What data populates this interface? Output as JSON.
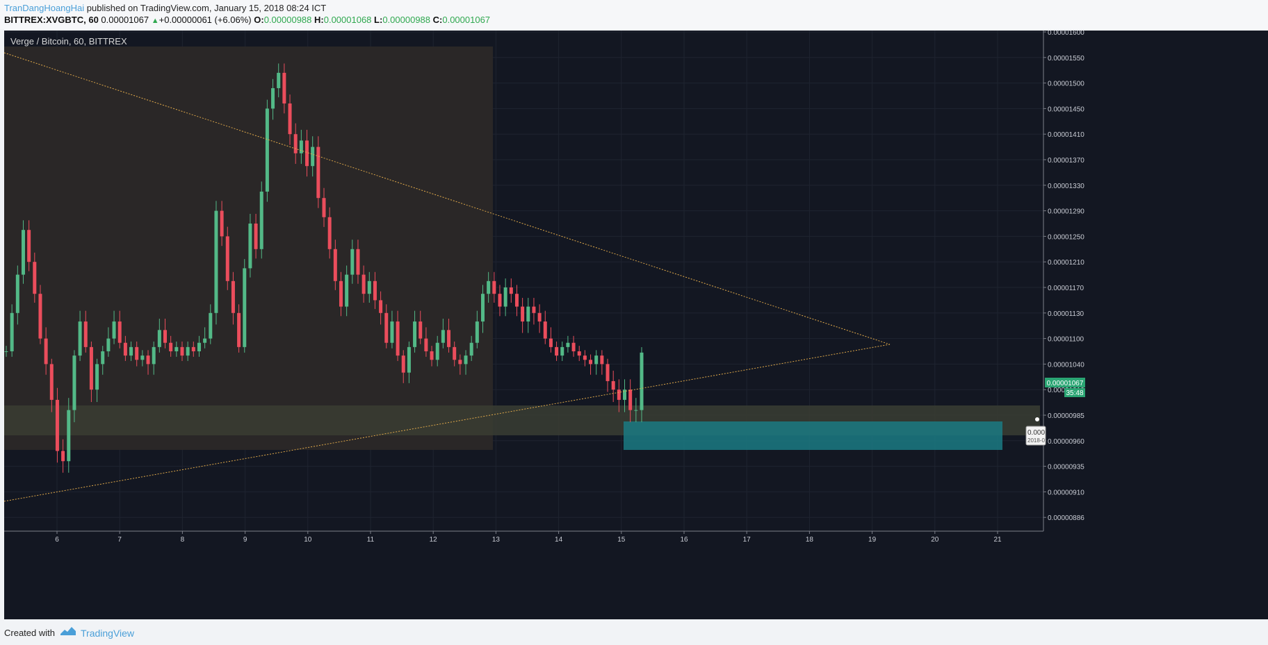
{
  "header": {
    "author": "TranDangHoangHai",
    "published_text": " published on TradingView.com, January 15, 2018 08:24 ICT",
    "symbol": "BITTREX:XVGBTC, 60",
    "last": "0.00001067",
    "change": "+0.00000061 (+6.06%)",
    "o_label": "O:",
    "o_value": "0.00000988",
    "h_label": "H:",
    "h_value": "0.00001068",
    "l_label": "L:",
    "l_value": "0.00000988",
    "c_label": "C:",
    "c_value": "0.00001067"
  },
  "chart": {
    "title": "Verge / Bitcoin, 60, BITTREX",
    "current_price": "0.00001067",
    "countdown": "35:48",
    "tooltip_value": "0.000",
    "tooltip_date": "2018-0",
    "colors": {
      "up": "#53b987",
      "down": "#eb4d5c",
      "background": "#131722",
      "trendline": "#e0a94a",
      "target_box": "#1b7a82",
      "current_tag": "#2aa573"
    }
  },
  "chart_data": {
    "type": "candlestick",
    "title": "Verge / Bitcoin, 60, BITTREX",
    "y_ticks": [
      "0.00001600",
      "0.00001550",
      "0.00001500",
      "0.00001450",
      "0.00001410",
      "0.00001370",
      "0.00001330",
      "0.00001290",
      "0.00001250",
      "0.00001210",
      "0.00001170",
      "0.00001130",
      "0.00001100",
      "0.00001040",
      "0.00001010",
      "0.00000985",
      "0.00000960",
      "0.00000935",
      "0.00000910",
      "0.00000886"
    ],
    "x_ticks": [
      "6",
      "7",
      "8",
      "9",
      "10",
      "11",
      "12",
      "13",
      "14",
      "15",
      "16",
      "17",
      "18",
      "19",
      "20",
      "21"
    ],
    "closes": [
      1.07e-05,
      1.13e-05,
      1.19e-05,
      1.26e-05,
      1.21e-05,
      1.16e-05,
      1.1e-05,
      1.04e-05,
      1e-05,
      9.5e-06,
      9.4e-06,
      9.9e-06,
      1.06e-05,
      1.12e-05,
      1.08e-05,
      1.01e-05,
      1.04e-05,
      1.07e-05,
      1.1e-05,
      1.12e-05,
      1.09e-05,
      1.06e-05,
      1.08e-05,
      1.05e-05,
      1.06e-05,
      1.04e-05,
      1.08e-05,
      1.11e-05,
      1.09e-05,
      1.07e-05,
      1.08e-05,
      1.06e-05,
      1.08e-05,
      1.07e-05,
      1.09e-05,
      1.1e-05,
      1.13e-05,
      1.29e-05,
      1.25e-05,
      1.18e-05,
      1.13e-05,
      1.08e-05,
      1.2e-05,
      1.27e-05,
      1.23e-05,
      1.32e-05,
      1.45e-05,
      1.49e-05,
      1.52e-05,
      1.46e-05,
      1.41e-05,
      1.38e-05,
      1.4e-05,
      1.36e-05,
      1.39e-05,
      1.31e-05,
      1.28e-05,
      1.23e-05,
      1.18e-05,
      1.14e-05,
      1.19e-05,
      1.23e-05,
      1.19e-05,
      1.16e-05,
      1.18e-05,
      1.15e-05,
      1.13e-05,
      1.09e-05,
      1.12e-05,
      1.06e-05,
      1.03e-05,
      1.08e-05,
      1.12e-05,
      1.1e-05,
      1.07e-05,
      1.05e-05,
      1.09e-05,
      1.11e-05,
      1.08e-05,
      1.05e-05,
      1.04e-05,
      1.06e-05,
      1.09e-05,
      1.12e-05,
      1.16e-05,
      1.18e-05,
      1.16e-05,
      1.14e-05,
      1.17e-05,
      1.16e-05,
      1.14e-05,
      1.12e-05,
      1.14e-05,
      1.13e-05,
      1.12e-05,
      1.1e-05,
      1.08e-05,
      1.06e-05,
      1.08e-05,
      1.09e-05,
      1.07e-05,
      1.06e-05,
      1.05e-05,
      1.04e-05,
      1.06e-05,
      1.04e-05,
      1.02e-05,
      1.01e-05,
      1e-05,
      1.01e-05,
      9.9e-06,
      9.9e-06,
      1.067e-05
    ],
    "annotations": [
      "descending trendline",
      "ascending trendline",
      "support zone 0.00000985-0.00001040",
      "target box 0.00000960-0.00001010"
    ]
  },
  "footer": {
    "created_with": "Created with",
    "brand": "TradingView"
  }
}
